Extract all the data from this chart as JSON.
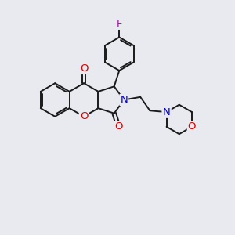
{
  "bg_color": "#e8eaf0",
  "bond_color": "#1a1a1a",
  "bond_width": 1.4,
  "atom_colors": {
    "O": "#dd0000",
    "N": "#0000cc",
    "F": "#bb00bb",
    "C": "#1a1a1a"
  },
  "font_size_atom": 8.5,
  "fig_width": 3.0,
  "fig_height": 3.0,
  "xlim": [
    -0.5,
    6.2
  ],
  "ylim": [
    -1.5,
    5.8
  ]
}
